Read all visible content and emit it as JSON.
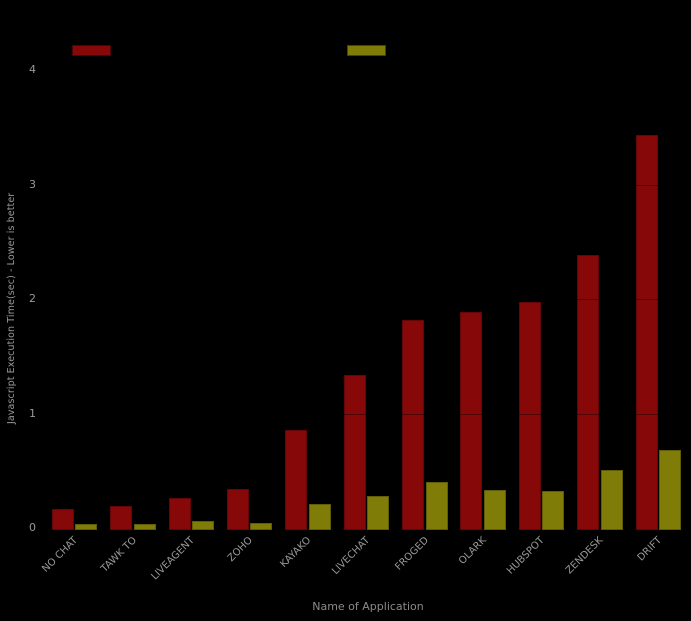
{
  "chart_data": {
    "type": "bar",
    "title": "",
    "xlabel": "Name of Application",
    "ylabel": "Javascript Execution Time(sec) - Lower is better",
    "categories": [
      "NO CHAT",
      "TAWK TO",
      "LIVEAGENT",
      "ZOHO",
      "KAYAKO",
      "LIVECHAT",
      "FROGED",
      "OLARK",
      "HUBSPOT",
      "ZENDESK",
      "DRIFT"
    ],
    "series": [
      {
        "id": "dark-red",
        "label": "",
        "color": "#870808",
        "values": [
          0.18,
          0.21,
          0.28,
          0.36,
          0.87,
          1.35,
          1.83,
          1.9,
          1.99,
          2.4,
          3.45
        ]
      },
      {
        "id": "olive-yellow",
        "label": "",
        "color": "#807c08",
        "values": [
          0.05,
          0.05,
          0.08,
          0.06,
          0.23,
          0.3,
          0.42,
          0.35,
          0.34,
          0.52,
          0.7
        ]
      }
    ],
    "ylim": [
      0,
      4.35
    ],
    "yticks": [
      0,
      1,
      2,
      3,
      4
    ],
    "legend_position": "top",
    "legend_labels_visible": false,
    "grid": false,
    "background_color": "#000000",
    "text_color": "#999999"
  }
}
